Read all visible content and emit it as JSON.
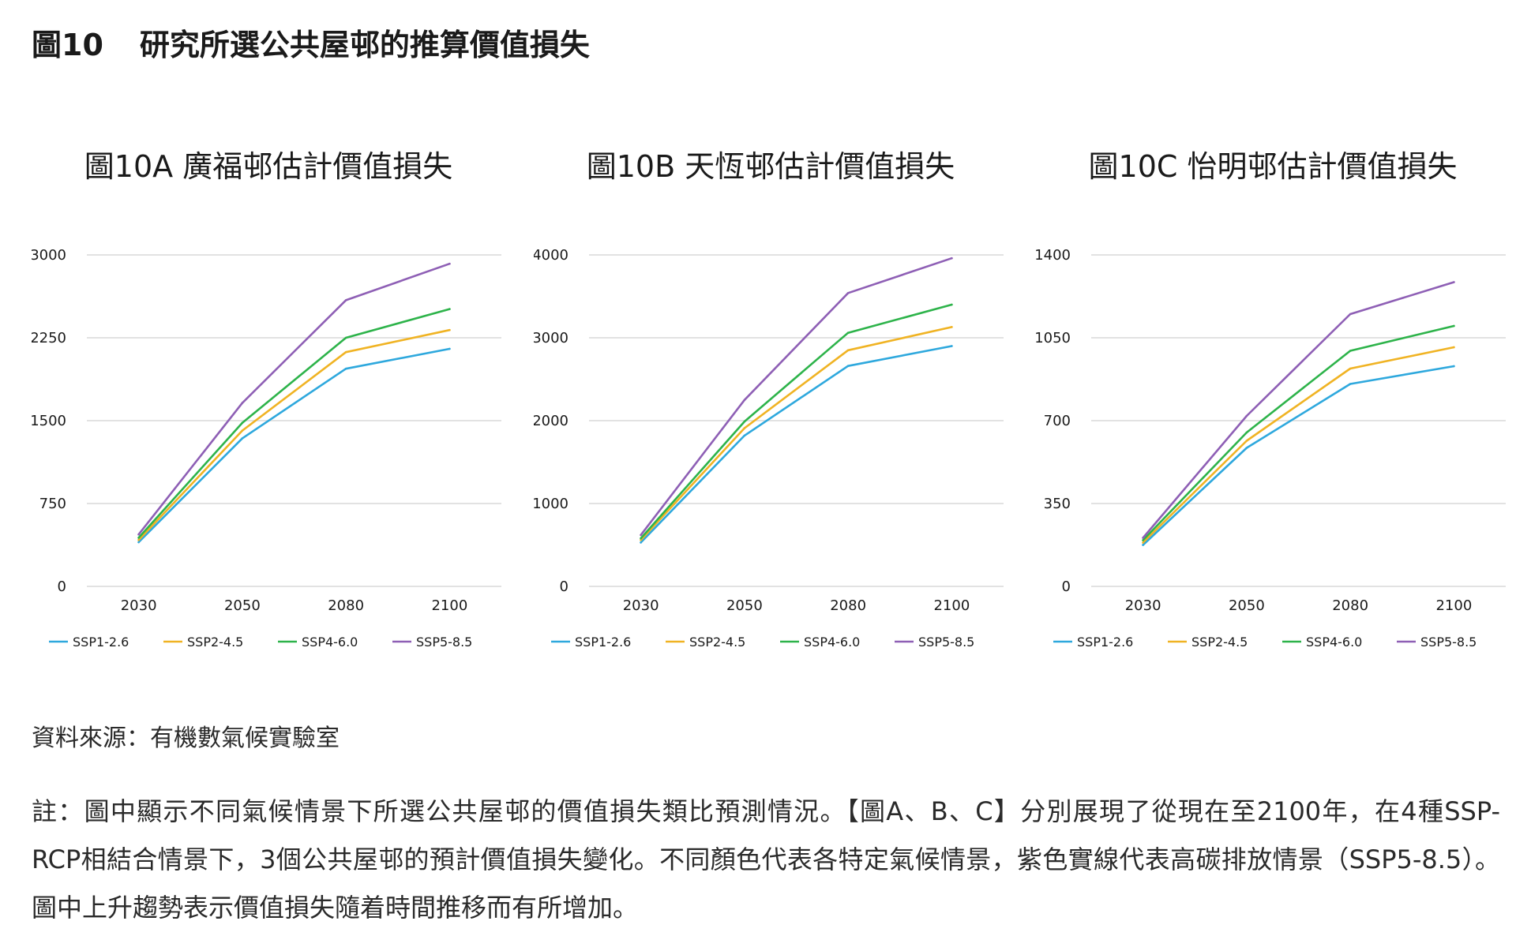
{
  "figure": {
    "number": "圖10",
    "title": "研究所選公共屋邨的推算價值損失"
  },
  "source": "資料來源：有機數氣候實驗室",
  "note": "註：圖中顯示不同氣候情景下所選公共屋邨的價值損失類比預測情況。【圖A、B、C】分別展現了從現在至2100年，在4種SSP- RCP相結合情景下，3個公共屋邨的預計價值損失變化。不同顏色代表各特定氣候情景，紫色實線代表高碳排放情景（SSP5-8.5）。圖中上升趨勢表示價值損失隨着時間推移而有所增加。",
  "colors": {
    "SSP1-2.6": "#2ea8dd",
    "SSP2-4.5": "#f0b323",
    "SSP4-6.0": "#2db34a",
    "SSP5-8.5": "#8e5fb5",
    "grid": "#d9d9d9",
    "text": "#1a1a1a"
  },
  "chart_data": [
    {
      "type": "line",
      "title": "圖10A 廣福邨估計價值損失",
      "categories": [
        "2030",
        "2050",
        "2080",
        "2100"
      ],
      "ylim": [
        0,
        3000
      ],
      "yticks": [
        0,
        750,
        1500,
        2250,
        3000
      ],
      "grid": true,
      "legend": "bottom",
      "series": [
        {
          "name": "SSP1-2.6",
          "values": [
            400,
            1340,
            1970,
            2150
          ]
        },
        {
          "name": "SSP2-4.5",
          "values": [
            420,
            1410,
            2120,
            2320
          ]
        },
        {
          "name": "SSP4-6.0",
          "values": [
            440,
            1480,
            2250,
            2510
          ]
        },
        {
          "name": "SSP5-8.5",
          "values": [
            470,
            1660,
            2590,
            2920
          ]
        }
      ]
    },
    {
      "type": "line",
      "title": "圖10B 天恆邨估計價值損失",
      "categories": [
        "2030",
        "2050",
        "2080",
        "2100"
      ],
      "ylim": [
        0,
        4000
      ],
      "yticks": [
        0,
        1000,
        2000,
        3000,
        4000
      ],
      "grid": true,
      "legend": "bottom",
      "series": [
        {
          "name": "SSP1-2.6",
          "values": [
            530,
            1820,
            2660,
            2900
          ]
        },
        {
          "name": "SSP2-4.5",
          "values": [
            560,
            1910,
            2850,
            3130
          ]
        },
        {
          "name": "SSP4-6.0",
          "values": [
            580,
            1990,
            3060,
            3400
          ]
        },
        {
          "name": "SSP5-8.5",
          "values": [
            620,
            2250,
            3540,
            3960
          ]
        }
      ]
    },
    {
      "type": "line",
      "title": "圖10C 怡明邨估計價值損失",
      "categories": [
        "2030",
        "2050",
        "2080",
        "2100"
      ],
      "ylim": [
        0,
        1400
      ],
      "yticks": [
        0,
        350,
        700,
        1050,
        1400
      ],
      "grid": true,
      "legend": "bottom",
      "series": [
        {
          "name": "SSP1-2.6",
          "values": [
            175,
            585,
            855,
            930
          ]
        },
        {
          "name": "SSP2-4.5",
          "values": [
            185,
            615,
            920,
            1010
          ]
        },
        {
          "name": "SSP4-6.0",
          "values": [
            195,
            650,
            995,
            1100
          ]
        },
        {
          "name": "SSP5-8.5",
          "values": [
            205,
            720,
            1150,
            1285
          ]
        }
      ]
    }
  ],
  "legend_labels": [
    "SSP1-2.6",
    "SSP2-4.5",
    "SSP4-6.0",
    "SSP5-8.5"
  ]
}
